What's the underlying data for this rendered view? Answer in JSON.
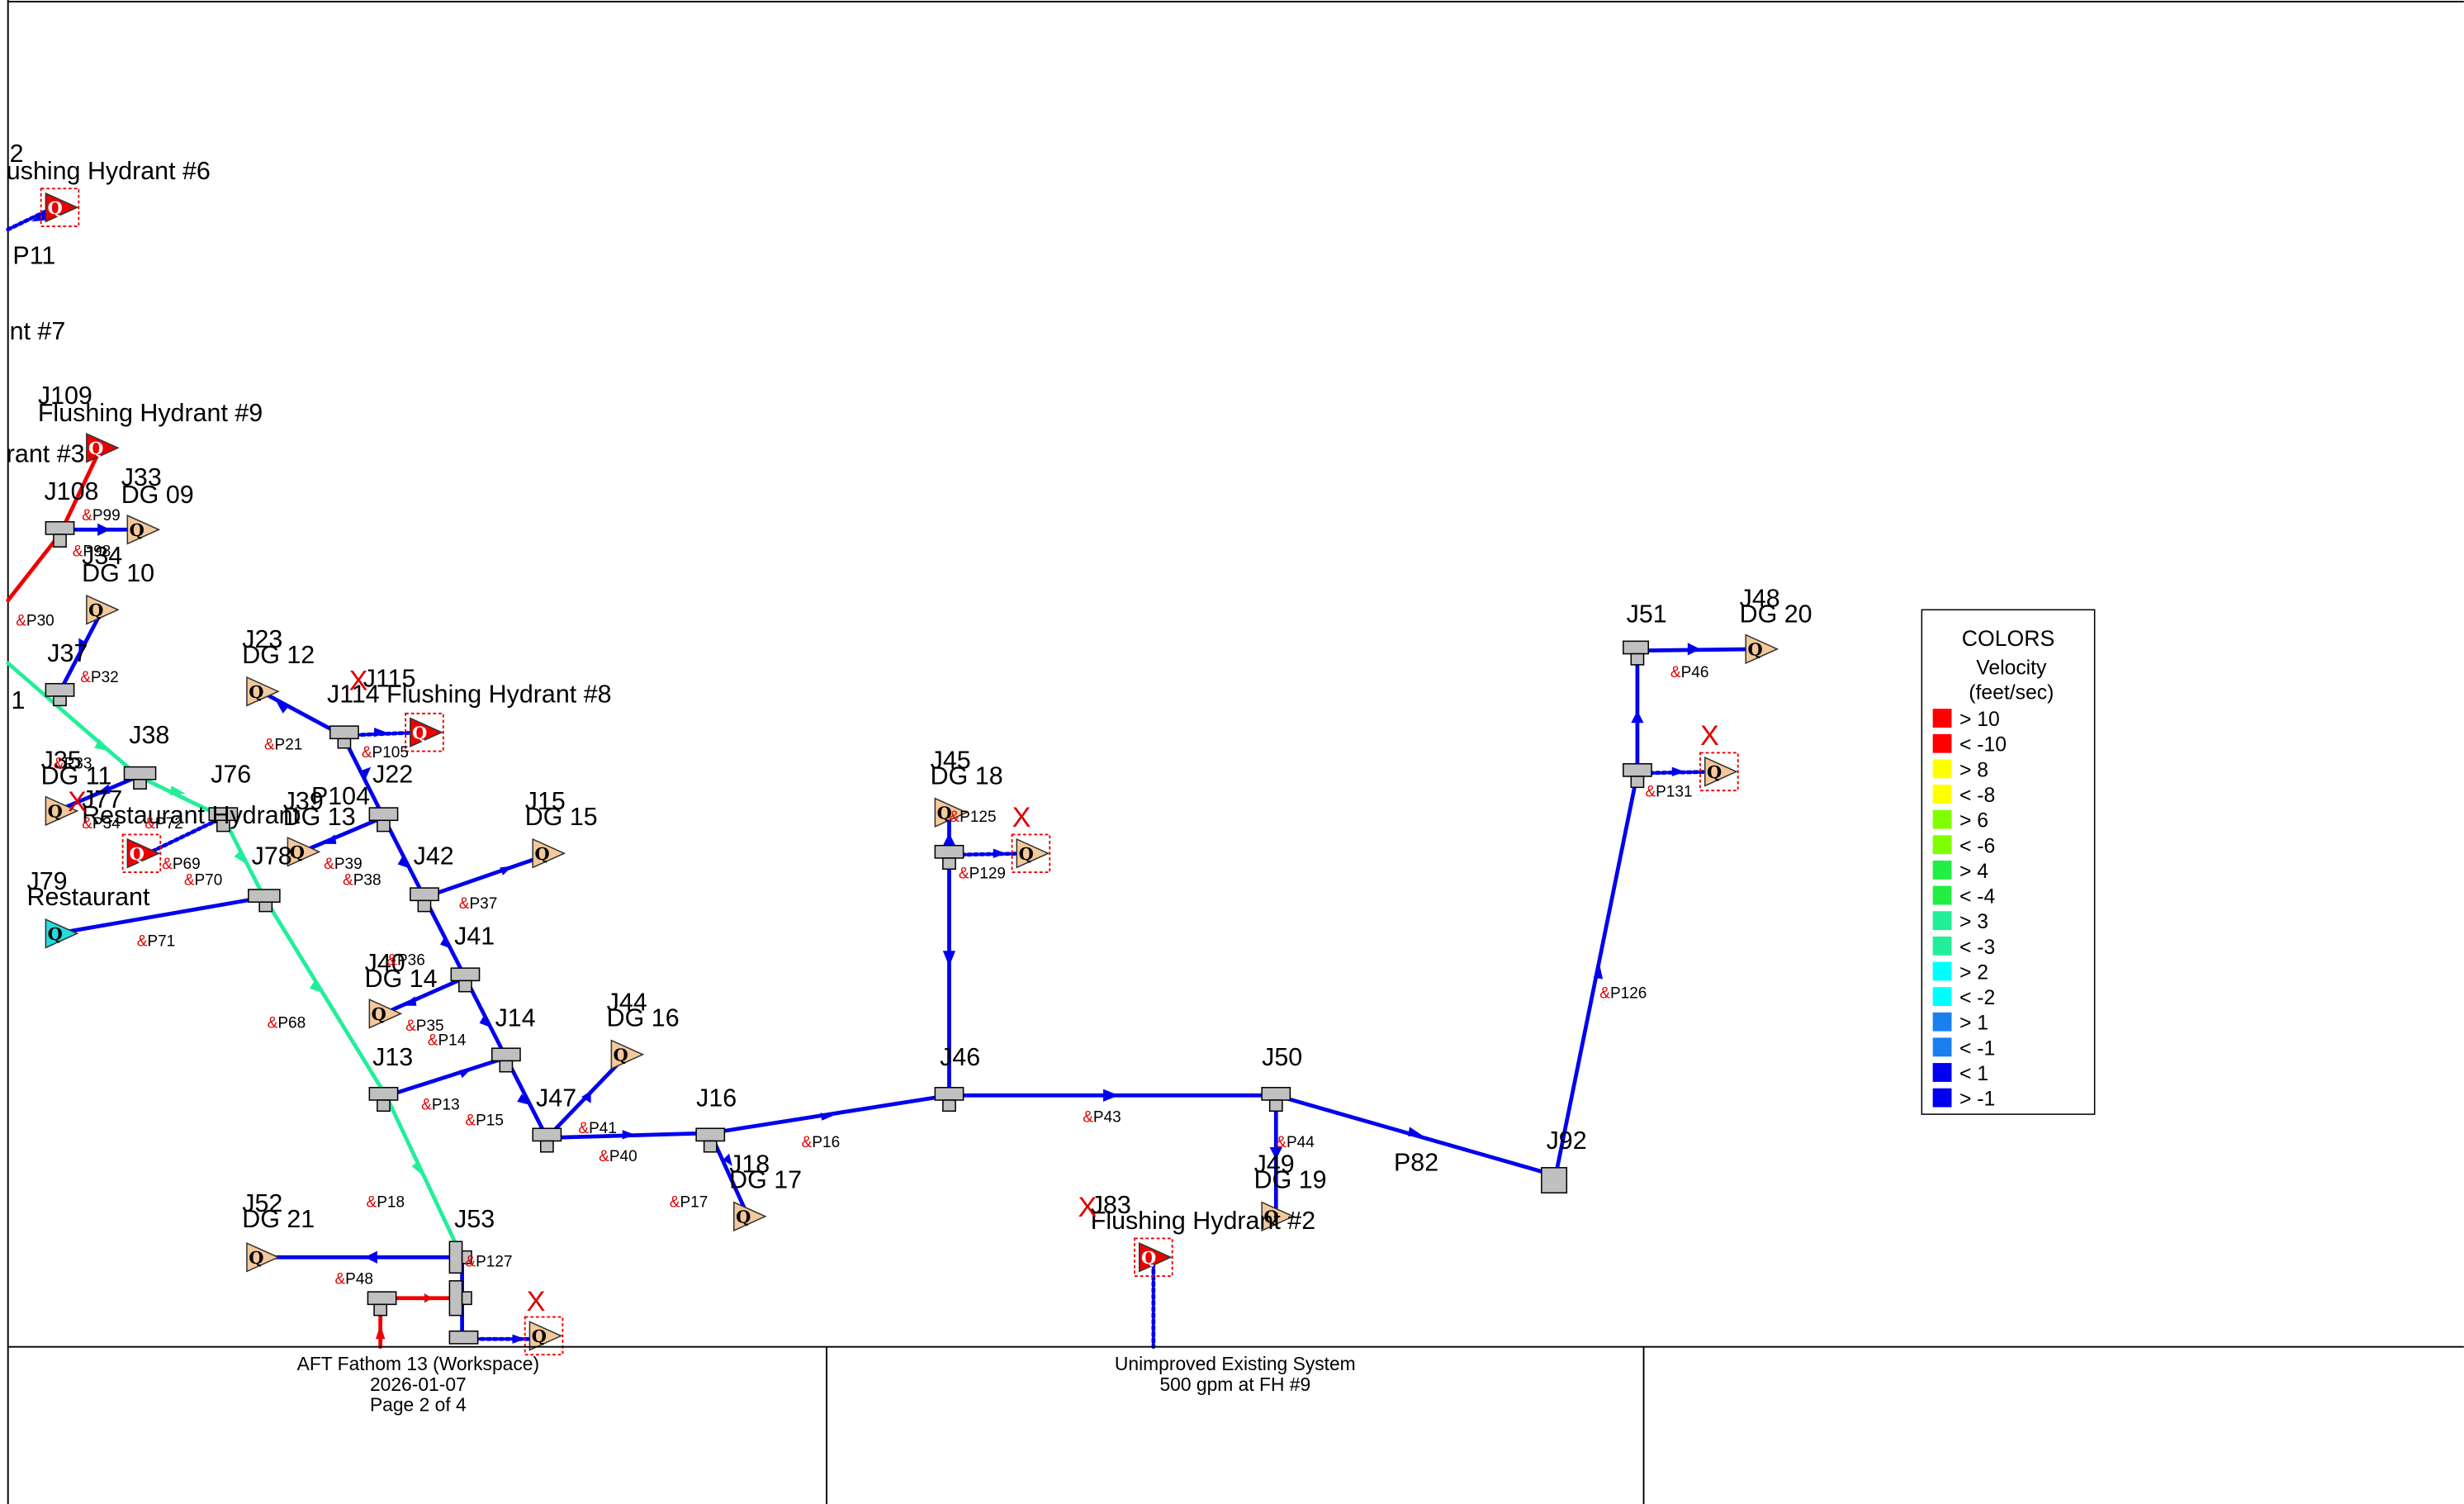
{
  "colors": {
    "blue": "#0000ee",
    "green": "#22ee99",
    "red": "#ee0000",
    "tank_fill": "#f3c99c",
    "tee_fill": "#c0c0c0"
  },
  "legend": {
    "title": "COLORS",
    "subtitle1": "Velocity",
    "subtitle2": "(feet/sec)",
    "items": [
      {
        "label": "> 10",
        "color": "#ff0000"
      },
      {
        "label": "< -10",
        "color": "#ff0000"
      },
      {
        "label": "> 8",
        "color": "#ffff00"
      },
      {
        "label": "< -8",
        "color": "#ffff00"
      },
      {
        "label": "> 6",
        "color": "#80ff00"
      },
      {
        "label": "< -6",
        "color": "#80ff00"
      },
      {
        "label": "> 4",
        "color": "#22ee44"
      },
      {
        "label": "< -4",
        "color": "#22ee44"
      },
      {
        "label": "> 3",
        "color": "#22ee99"
      },
      {
        "label": "< -3",
        "color": "#22ee99"
      },
      {
        "label": "> 2",
        "color": "#00ffff"
      },
      {
        "label": "< -2",
        "color": "#00ffff"
      },
      {
        "label": "> 1",
        "color": "#1a80f0"
      },
      {
        "label": "< -1",
        "color": "#1a80f0"
      },
      {
        "label": "< 1",
        "color": "#0000ee"
      },
      {
        "label": "> -1",
        "color": "#0000ee"
      }
    ]
  },
  "title_block": {
    "left_line1": "AFT Fathom 13  (Workspace)",
    "left_line2": "2026-01-07",
    "left_line3": "Page 2 of 4",
    "center_line1": "Unimproved Existing System",
    "center_line2": "500 gpm at FH #9"
  },
  "junction_labels": {
    "j2_line1": "2",
    "j2_line2": "ushing Hydrant #6",
    "hydrant7": "nt #7",
    "j109_line1": "J109",
    "j109_line2": "Flushing Hydrant #9",
    "hydrant3": "rant #3",
    "j33_line1": "J33",
    "j33_line2": "DG 09",
    "j108": "J108",
    "j34_line1": "J34",
    "j34_line2": "DG 10",
    "j37": "J37",
    "edge1": "1",
    "j38": "J38",
    "j35_line1": "J35",
    "j35_line2": "DG 11",
    "j77": "J77",
    "restaurant_hydrant": "Restaurant Hydrant",
    "j76": "J76",
    "j78": "J78",
    "j79_line1": "J79",
    "j79_line2": "Restaurant",
    "j23_line1": "J23",
    "j23_line2": "DG 12",
    "j115": "J115",
    "j114": "J114 Flushing Hydrant #8",
    "j22": "J22",
    "j39_line1": "J39",
    "j39_line2": "DG 13",
    "p104": "P104",
    "j42": "J42",
    "j15_line1": "J15",
    "j15_line2": "DG 15",
    "j41": "J41",
    "j40_line1": "J40",
    "j40_line2": "DG 14",
    "j14": "J14",
    "j13": "J13",
    "j44_line1": "J44",
    "j44_line2": "DG 16",
    "j47": "J47",
    "j16": "J16",
    "j18_line1": "J18",
    "j18_line2": "DG 17",
    "j52_line1": "J52",
    "j52_line2": "DG 21",
    "j53": "J53",
    "j45_line1": "J45",
    "j45_line2": "DG 18",
    "j46": "J46",
    "j50": "J50",
    "j49_line1": "J49",
    "j49_line2": "DG 19",
    "j83": "J83",
    "flushing_hydrant2": "Flushing Hydrant #2",
    "j92": "J92",
    "p82": "P82",
    "j51": "J51",
    "j48_line1": "J48",
    "j48_line2": "DG 20"
  },
  "pipe_labels": {
    "p11": "P11",
    "p99": "P99",
    "p98": "P98",
    "p30": "P30",
    "p32": "P32",
    "p33": "P33",
    "p34": "P34",
    "p72": "P72",
    "p69": "P69",
    "p70": "P70",
    "p71": "P71",
    "p68": "P68",
    "p21": "P21",
    "p105": "P105",
    "p39": "P39",
    "p38": "P38",
    "p37": "P37",
    "p36": "P36",
    "p35": "P35",
    "p14": "P14",
    "p13": "P13",
    "p15": "P15",
    "p41": "P41",
    "p40": "P40",
    "p16": "P16",
    "p17": "P17",
    "p18": "P18",
    "p127": "P127",
    "p48": "P48",
    "p125": "P125",
    "p129": "P129",
    "p43": "P43",
    "p44": "P44",
    "p126": "P126",
    "p131": "P131",
    "p46": "P46"
  },
  "markers": {
    "amp": "&",
    "x": "X",
    "q": "Q"
  }
}
